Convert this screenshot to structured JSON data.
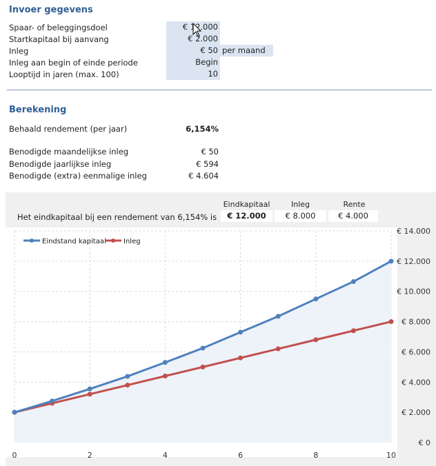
{
  "input": {
    "title": "Invoer gegevens",
    "rows": [
      {
        "label": "Spaar- of beleggingsdoel",
        "value": "€ 12.000"
      },
      {
        "label": "Startkapitaal bij aanvang",
        "value": "€ 2.000"
      },
      {
        "label": "Inleg",
        "value": "€ 50",
        "unit": "per maand"
      },
      {
        "label": "Inleg aan begin of einde periode",
        "value": "Begin"
      },
      {
        "label": "Looptijd in jaren (max. 100)",
        "value": "10"
      }
    ]
  },
  "calc": {
    "title": "Berekening",
    "return_label": "Behaald rendement (per jaar)",
    "return_value": "6,154%",
    "rows": [
      {
        "label": "Benodigde maandelijkse inleg",
        "value": "€ 50"
      },
      {
        "label": "Benodigde jaarlijkse inleg",
        "value": "€ 594"
      },
      {
        "label": "Benodigde (extra) eenmalige inleg",
        "value": "€ 4.604"
      }
    ]
  },
  "summary": {
    "text": "Het eindkapitaal bij een rendement van 6,154% is",
    "headers": [
      "Eindkapitaal",
      "Inleg",
      "Rente"
    ],
    "values": [
      "€ 12.000",
      "€ 8.000",
      "€ 4.000"
    ]
  },
  "chart_data": {
    "type": "line",
    "x": [
      0,
      1,
      2,
      3,
      4,
      5,
      6,
      7,
      8,
      9,
      10
    ],
    "x_ticks": [
      "0",
      "2",
      "4",
      "6",
      "8",
      "10"
    ],
    "y_ticks": [
      "€ 0",
      "€ 2.000",
      "€ 4.000",
      "€ 6.000",
      "€ 8.000",
      "€ 10.000",
      "€ 12.000",
      "€ 14.000"
    ],
    "ylim": [
      0,
      14000
    ],
    "xlim": [
      0,
      10
    ],
    "grid": true,
    "legend": "top-left",
    "series": [
      {
        "name": "Eindstand kapitaal",
        "color": "#4f81bd",
        "values": [
          2000,
          2750,
          3550,
          4380,
          5300,
          6250,
          7300,
          8350,
          9500,
          10650,
          12000
        ]
      },
      {
        "name": "Inleg",
        "color": "#c0504d",
        "values": [
          2000,
          2600,
          3200,
          3800,
          4400,
          5000,
          5600,
          6200,
          6800,
          7400,
          8000
        ]
      }
    ]
  }
}
